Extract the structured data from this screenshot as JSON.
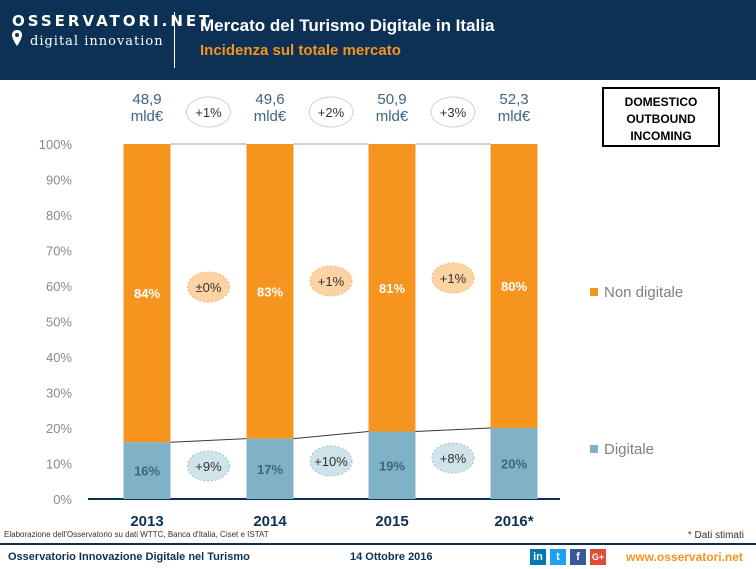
{
  "header": {
    "logo_top": "OSSERVATORI.NET",
    "logo_bottom": "digital innovation",
    "title": "Mercato del Turismo Digitale in Italia",
    "subtitle": "Incidenza sul totale mercato"
  },
  "legend_box": {
    "line1": "DOMESTICO",
    "line2": "OUTBOUND",
    "line3": "INCOMING"
  },
  "chart_data": {
    "type": "bar",
    "stacked": true,
    "percent": true,
    "categories": [
      "2013",
      "2014",
      "2015",
      "2016*"
    ],
    "series": [
      {
        "name": "Digitale",
        "values": [
          16,
          17,
          19,
          20
        ],
        "color": "#7fb2c6",
        "labels": [
          "16%",
          "17%",
          "19%",
          "20%"
        ]
      },
      {
        "name": "Non digitale",
        "values": [
          84,
          83,
          81,
          80
        ],
        "color": "#f5941f",
        "labels": [
          "84%",
          "83%",
          "81%",
          "80%"
        ]
      }
    ],
    "y_ticks": [
      "0%",
      "10%",
      "20%",
      "30%",
      "40%",
      "50%",
      "60%",
      "70%",
      "80%",
      "90%",
      "100%"
    ],
    "ylim": [
      0,
      100
    ],
    "totals": [
      {
        "value": "48,9",
        "unit": "mld€"
      },
      {
        "value": "49,6",
        "unit": "mld€"
      },
      {
        "value": "50,9",
        "unit": "mld€"
      },
      {
        "value": "52,3",
        "unit": "mld€"
      }
    ],
    "total_growth": [
      "+1%",
      "+2%",
      "+3%"
    ],
    "non_digital_growth": [
      "±0%",
      "+1%",
      "+1%"
    ],
    "digital_growth": [
      "+9%",
      "+10%",
      "+8%"
    ],
    "legend_position": "right",
    "grid": false
  },
  "notes": {
    "source": "Elaborazione dell'Osservatorio su dati WTTC, Banca d'Italia, Ciset e ISTAT",
    "estimate": "* Dati stimati"
  },
  "footer": {
    "left": "Osservatorio Innovazione Digitale nel Turismo",
    "date": "14 Ottobre 2016",
    "url": "www.osservatori.net",
    "social": [
      "in",
      "t",
      "f",
      "G+"
    ]
  },
  "colors": {
    "navy": "#0d3154",
    "orange": "#f5941f",
    "teal": "#7fb2c6",
    "bubble_orange": "#fbd3a4",
    "bubble_teal": "#cfe3ea",
    "total_text": "#3e6583"
  }
}
